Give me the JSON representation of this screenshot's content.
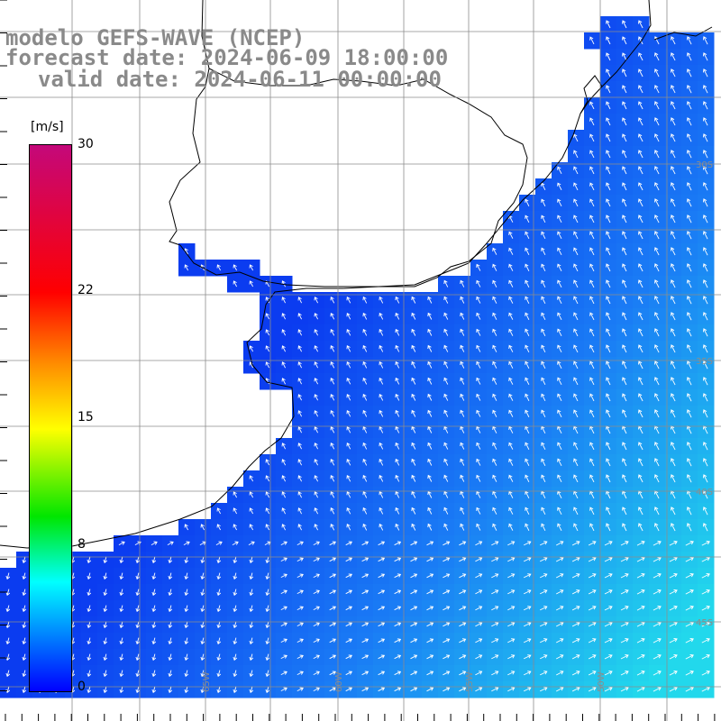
{
  "title": {
    "line1": "modelo GEFS-WAVE (NCEP)",
    "line2": "forecast date: 2024-06-09 18:00:00",
    "line3": "valid date: 2024-06-11 00:00:00"
  },
  "colorbar": {
    "unit": "[m/s]",
    "ticks": [
      "30",
      "22",
      "15",
      "8",
      "0"
    ],
    "tick_values": [
      30,
      22,
      15,
      8,
      0
    ],
    "colors": [
      "#c4087a",
      "#ff0000",
      "#ff8c00",
      "#ffff00",
      "#00e600",
      "#00ffff",
      "#0000ff"
    ]
  },
  "lat_labels": [
    "30S",
    "35S",
    "40S",
    "45S"
  ],
  "lon_labels": [
    "65W",
    "60W",
    "55W",
    "50W"
  ],
  "map": {
    "land_color": "#ffffff",
    "coast_color": "#000000",
    "grid_color": "#8c8c8c",
    "sea_colors": {
      "calm": "#0b3cf0",
      "mid": "#1a7cf5",
      "strong": "#22d8ec"
    }
  }
}
